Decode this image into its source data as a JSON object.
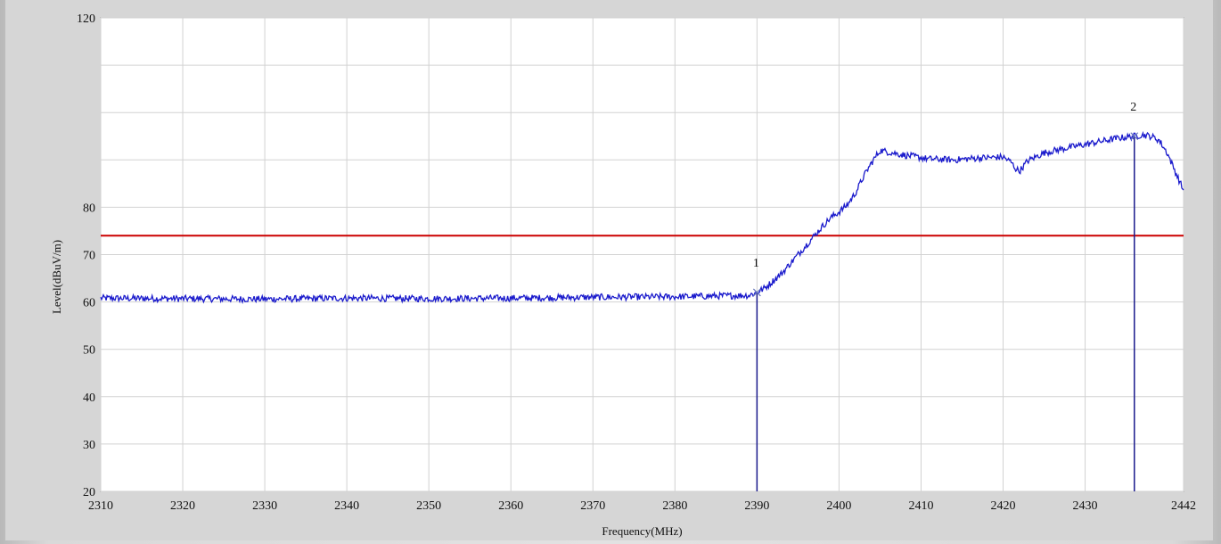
{
  "chart_data": {
    "type": "line",
    "title": "",
    "xlabel": "Frequency(MHz)",
    "ylabel": "Level(dBuV/m)",
    "xlim": [
      2310,
      2442
    ],
    "ylim": [
      20,
      120
    ],
    "xticks": [
      2310,
      2320,
      2330,
      2340,
      2350,
      2360,
      2370,
      2380,
      2390,
      2400,
      2410,
      2420,
      2430,
      2442
    ],
    "yticks": [
      20,
      30,
      40,
      50,
      60,
      70,
      80,
      120
    ],
    "grid": true,
    "limit_line": {
      "value": 74,
      "color": "#cc0000"
    },
    "series": [
      {
        "color": "#1a1acc",
        "x": [
          2310,
          2320,
          2330,
          2340,
          2350,
          2360,
          2370,
          2380,
          2389,
          2390,
          2391,
          2392,
          2393,
          2394,
          2395,
          2396,
          2397,
          2398,
          2399,
          2400,
          2401,
          2402,
          2403,
          2404,
          2405,
          2408,
          2411,
          2414,
          2417,
          2420,
          2421,
          2421.5,
          2422,
          2423,
          2425,
          2428,
          2431,
          2434,
          2436,
          2437,
          2438,
          2439,
          2440,
          2441,
          2442
        ],
        "y": [
          60.8,
          60.7,
          60.6,
          60.8,
          60.7,
          60.8,
          61.0,
          61.1,
          61.4,
          62.0,
          63.0,
          64.5,
          66.0,
          68.0,
          70.0,
          72.0,
          74.0,
          76.0,
          77.8,
          79.0,
          80.5,
          83.0,
          86.5,
          89.5,
          92.0,
          91.0,
          90.2,
          90.0,
          90.4,
          90.6,
          89.5,
          88.2,
          87.6,
          89.8,
          91.5,
          92.6,
          93.6,
          94.6,
          95.0,
          95.3,
          95.0,
          94.2,
          91.5,
          87.5,
          83.5
        ]
      }
    ],
    "markers": [
      {
        "label": "1",
        "x": 2390,
        "y": 62.0
      },
      {
        "label": "2",
        "x": 2436,
        "y": 95.0
      }
    ]
  }
}
